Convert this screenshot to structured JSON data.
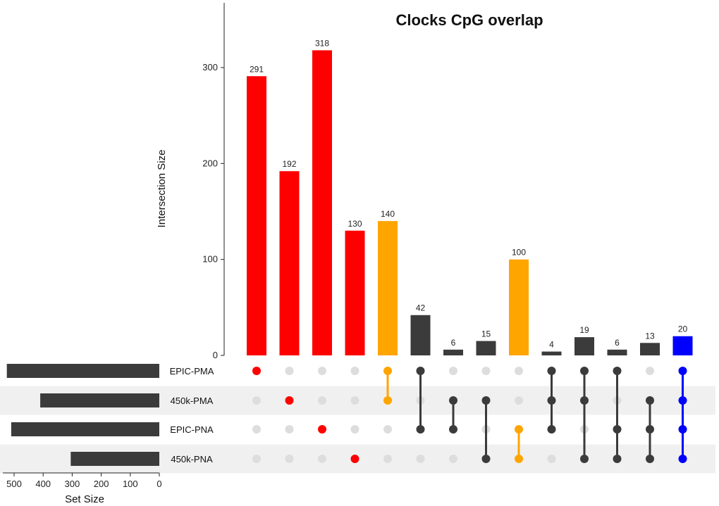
{
  "chart_data": {
    "type": "bar",
    "title": "Clocks CpG overlap",
    "ylabel": "Intersection Size",
    "ylim": [
      0,
      370
    ],
    "yticks": [
      0,
      100,
      200,
      300
    ],
    "sets": [
      {
        "name": "EPIC-PMA",
        "size": 525
      },
      {
        "name": "450k-PMA",
        "size": 410
      },
      {
        "name": "EPIC-PNA",
        "size": 510
      },
      {
        "name": "450k-PNA",
        "size": 305
      }
    ],
    "set_size_axis": {
      "label": "Set Size",
      "ticks": [
        500,
        400,
        300,
        200,
        100,
        0
      ],
      "xlim": [
        540,
        0
      ]
    },
    "intersections": [
      {
        "sets": [
          "EPIC-PMA"
        ],
        "value": 291,
        "color": "#ff0000"
      },
      {
        "sets": [
          "450k-PMA"
        ],
        "value": 192,
        "color": "#ff0000"
      },
      {
        "sets": [
          "EPIC-PNA"
        ],
        "value": 318,
        "color": "#ff0000"
      },
      {
        "sets": [
          "450k-PNA"
        ],
        "value": 130,
        "color": "#ff0000"
      },
      {
        "sets": [
          "EPIC-PMA",
          "450k-PMA"
        ],
        "value": 140,
        "color": "#ffa500"
      },
      {
        "sets": [
          "EPIC-PMA",
          "EPIC-PNA"
        ],
        "value": 42,
        "color": "#3b3b3b"
      },
      {
        "sets": [
          "450k-PMA",
          "EPIC-PNA"
        ],
        "value": 6,
        "color": "#3b3b3b"
      },
      {
        "sets": [
          "450k-PMA",
          "450k-PNA"
        ],
        "value": 15,
        "color": "#3b3b3b"
      },
      {
        "sets": [
          "EPIC-PNA",
          "450k-PNA"
        ],
        "value": 100,
        "color": "#ffa500"
      },
      {
        "sets": [
          "EPIC-PMA",
          "450k-PMA",
          "EPIC-PNA"
        ],
        "value": 4,
        "color": "#3b3b3b"
      },
      {
        "sets": [
          "EPIC-PMA",
          "450k-PMA",
          "450k-PNA"
        ],
        "value": 19,
        "color": "#3b3b3b"
      },
      {
        "sets": [
          "EPIC-PMA",
          "EPIC-PNA",
          "450k-PNA"
        ],
        "value": 6,
        "color": "#3b3b3b"
      },
      {
        "sets": [
          "450k-PMA",
          "EPIC-PNA",
          "450k-PNA"
        ],
        "value": 13,
        "color": "#3b3b3b"
      },
      {
        "sets": [
          "EPIC-PMA",
          "450k-PMA",
          "EPIC-PNA",
          "450k-PNA"
        ],
        "value": 20,
        "color": "#0000ff"
      }
    ],
    "colors": {
      "empty_dot": "#dddddd",
      "default_bar": "#3b3b3b",
      "stripe": "#f0f0f0",
      "set_bar": "#3b3b3b"
    }
  }
}
